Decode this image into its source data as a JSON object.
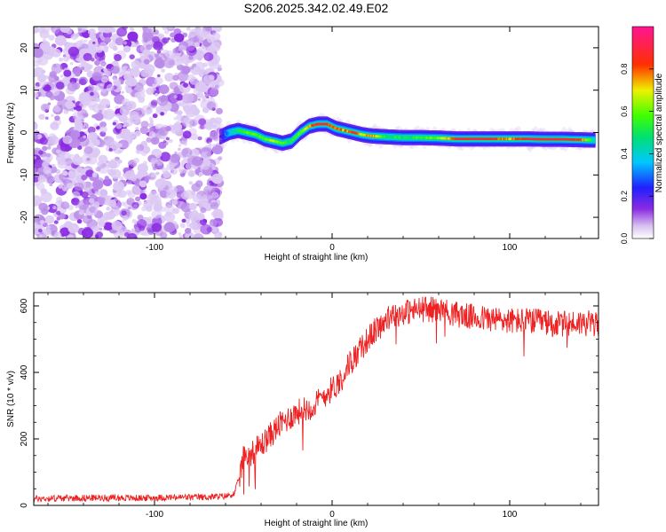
{
  "figure_title": "S206.2025.342.02.49.E02",
  "chart_data": [
    {
      "type": "heatmap",
      "title": "S206.2025.342.02.49.E02",
      "xlabel": "Height of straight line (km)",
      "ylabel": "Frequency (Hz)",
      "xlim": [
        -168,
        150
      ],
      "ylim": [
        -25,
        25
      ],
      "xticks": [
        -100,
        0,
        100
      ],
      "xtick_labels": [
        "-100",
        "0",
        "100"
      ],
      "yticks": [
        -20,
        -10,
        0,
        10,
        20
      ],
      "ytick_labels": [
        "-20",
        "-10",
        "0",
        "10",
        "20"
      ],
      "noise_region_x": [
        -168,
        -63
      ],
      "ridge_x": [
        -63,
        -58,
        -53,
        -48,
        -43,
        -38,
        -33,
        -28,
        -23,
        -18,
        -13,
        -8,
        -3,
        2,
        7,
        12,
        17,
        22,
        30,
        40,
        50,
        60,
        70,
        80,
        90,
        100,
        110,
        120,
        130,
        140,
        148
      ],
      "ridge_freq": [
        -1.0,
        0.0,
        0.5,
        0.0,
        -0.5,
        -1.5,
        -2.0,
        -2.5,
        -2.0,
        0.0,
        1.5,
        2.0,
        2.0,
        1.0,
        0.5,
        0.0,
        -0.5,
        -0.8,
        -1.0,
        -1.2,
        -1.2,
        -1.3,
        -1.5,
        -1.5,
        -1.5,
        -1.5,
        -1.5,
        -1.6,
        -1.6,
        -1.7,
        -1.8
      ],
      "ridge_amplitude": [
        0.15,
        0.35,
        0.5,
        0.6,
        0.55,
        0.6,
        0.65,
        0.55,
        0.5,
        0.6,
        0.75,
        0.9,
        0.85,
        0.8,
        0.75,
        0.85,
        0.7,
        0.8,
        0.5,
        0.5,
        0.55,
        0.6,
        0.85,
        0.9,
        0.85,
        0.75,
        0.9,
        0.9,
        0.9,
        0.85,
        0.4
      ],
      "colorbar": {
        "label": "Normalized spectral amplitude",
        "ticks": [
          0.0,
          0.2,
          0.4,
          0.6,
          0.8
        ],
        "tick_labels": [
          "0.0",
          "0.2",
          "0.4",
          "0.6",
          "0.8"
        ],
        "range": [
          0,
          1
        ],
        "colormap": "rainbow (white-purple-blue-cyan-green-yellow-red-magenta)"
      }
    },
    {
      "type": "line",
      "xlabel": "Height of straight line (km)",
      "ylabel": "SNR (10 * v/v)",
      "xlim": [
        -168,
        150
      ],
      "ylim": [
        0,
        640
      ],
      "xticks": [
        -100,
        0,
        100
      ],
      "xtick_labels": [
        "-100",
        "0",
        "100"
      ],
      "yticks": [
        0,
        200,
        400,
        600
      ],
      "ytick_labels": [
        "0",
        "200",
        "400",
        "600"
      ],
      "line_color": "#ee2222",
      "series": [
        {
          "name": "SNR",
          "x": [
            -168,
            -150,
            -130,
            -110,
            -90,
            -70,
            -60,
            -55,
            -52,
            -50,
            -45,
            -40,
            -35,
            -30,
            -25,
            -20,
            -15,
            -10,
            -5,
            0,
            5,
            10,
            15,
            20,
            25,
            30,
            35,
            40,
            45,
            50,
            55,
            60,
            70,
            80,
            90,
            100,
            110,
            120,
            125,
            130,
            140,
            150
          ],
          "values": [
            20,
            22,
            23,
            22,
            24,
            25,
            28,
            35,
            90,
            140,
            160,
            180,
            210,
            240,
            260,
            280,
            290,
            300,
            330,
            350,
            380,
            430,
            460,
            500,
            530,
            555,
            570,
            580,
            585,
            590,
            590,
            588,
            575,
            565,
            560,
            555,
            555,
            550,
            545,
            545,
            550,
            545
          ]
        }
      ],
      "noise_amplitude_pre_onset": 10,
      "noise_amplitude_post_onset": 40
    }
  ]
}
